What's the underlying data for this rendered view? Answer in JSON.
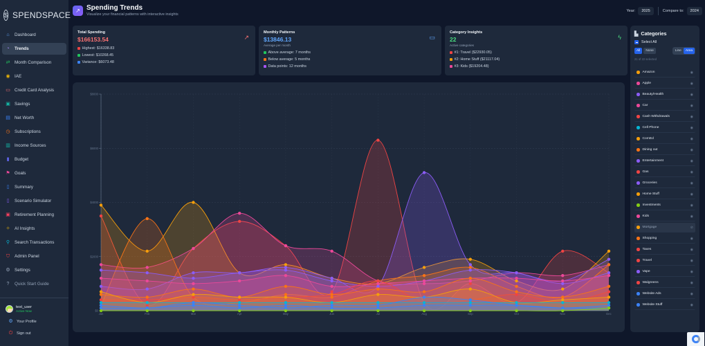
{
  "brand": {
    "name": "SPENDSPACE",
    "icon": "stopwatch-dollar-icon"
  },
  "sidebar": {
    "items": [
      {
        "label": "Dashboard",
        "icon": "home-icon",
        "glyph": "⌂",
        "color": "#60a5fa"
      },
      {
        "label": "Trends",
        "icon": "trend-icon",
        "glyph": "◔",
        "color": "#a78bfa",
        "active": true
      },
      {
        "label": "Month Comparison",
        "icon": "compare-arrows-icon",
        "glyph": "⇄",
        "color": "#22c55e"
      },
      {
        "label": "IAE",
        "icon": "coin-icon",
        "glyph": "◉",
        "color": "#eab308"
      },
      {
        "label": "Credit Card Analysis",
        "icon": "credit-card-icon",
        "glyph": "▭",
        "color": "#f87171"
      },
      {
        "label": "Savings",
        "icon": "savings-icon",
        "glyph": "▣",
        "color": "#14b8a6"
      },
      {
        "label": "Net Worth",
        "icon": "net-worth-icon",
        "glyph": "▤",
        "color": "#3b82f6"
      },
      {
        "label": "Subscriptions",
        "icon": "clock-icon",
        "glyph": "◷",
        "color": "#f97316"
      },
      {
        "label": "Income Sources",
        "icon": "income-icon",
        "glyph": "▥",
        "color": "#14b8a6"
      },
      {
        "label": "Budget",
        "icon": "bar-chart-icon",
        "glyph": "▮",
        "color": "#6366f1"
      },
      {
        "label": "Goals",
        "icon": "flag-icon",
        "glyph": "⚑",
        "color": "#ec4899"
      },
      {
        "label": "Summary",
        "icon": "document-icon",
        "glyph": "▯",
        "color": "#3b82f6"
      },
      {
        "label": "Scenario Simulator",
        "icon": "simulator-icon",
        "glyph": "▯",
        "color": "#8b5cf6"
      },
      {
        "label": "Retirement Planning",
        "icon": "retirement-icon",
        "glyph": "▣",
        "color": "#f43f5e"
      },
      {
        "label": "AI Insights",
        "icon": "sparkle-icon",
        "glyph": "✧",
        "color": "#eab308"
      },
      {
        "label": "Search Transactions",
        "icon": "search-icon",
        "glyph": "⚲",
        "color": "#06b6d4"
      },
      {
        "label": "Admin Panel",
        "icon": "shield-icon",
        "glyph": "⛉",
        "color": "#ef4444"
      },
      {
        "label": "Settings",
        "icon": "gear-icon",
        "glyph": "⚙",
        "color": "#94a3b8"
      },
      {
        "label": "Quick Start Guide",
        "icon": "help-icon",
        "glyph": "?",
        "color": "#94a3b8",
        "muted": true
      }
    ],
    "user": {
      "name": "test_user",
      "status": "Active Now"
    },
    "profile_label": "Your Profile",
    "signout_label": "Sign out"
  },
  "header": {
    "title": "Spending Trends",
    "subtitle": "Visualize your financial patterns with interactive insights",
    "year_label": "Year:",
    "year_value": "2025",
    "compare_label": "Compare to:",
    "compare_value": "2024"
  },
  "cards": {
    "total": {
      "title": "Total Spending",
      "value": "$166153.54",
      "value_color": "#f87171",
      "icon": "trend-up-icon",
      "items": [
        {
          "text": "Highest: $16338.83",
          "color": "#ef4444"
        },
        {
          "text": "Lowest: $10268.45",
          "color": "#22c55e"
        },
        {
          "text": "Variance: $6073.48",
          "color": "#3b82f6"
        }
      ]
    },
    "monthly": {
      "title": "Monthly Patterns",
      "value": "$13846.13",
      "value_color": "#60a5fa",
      "sub": "Average per month",
      "icon": "calendar-icon",
      "items": [
        {
          "text": "Above average: 7 months",
          "color": "#22c55e"
        },
        {
          "text": "Below average: 5 months",
          "color": "#f97316"
        },
        {
          "text": "Data points: 12 months",
          "color": "#a855f7"
        }
      ]
    },
    "category": {
      "title": "Category Insights",
      "value": "22",
      "value_color": "#4ade80",
      "sub": "Active categories",
      "icon": "lightning-icon",
      "items": [
        {
          "text": "#1: Travel ($22930.05)",
          "color": "#ef4444"
        },
        {
          "text": "#2: Home Stuff ($21117.04)",
          "color": "#f59e0b"
        },
        {
          "text": "#3: Kids ($19204.48)",
          "color": "#ec4899"
        }
      ]
    }
  },
  "categories_panel": {
    "title": "Categories",
    "select_all_label": "Select All",
    "all_label": "All",
    "none_label": "None",
    "line_label": "Line",
    "area_label": "Area",
    "selected_text": "21 of 22 selected",
    "items": [
      {
        "name": "Amazon",
        "color": "#f59e0b"
      },
      {
        "name": "Apple",
        "color": "#ec4899"
      },
      {
        "name": "Beauty/Health",
        "color": "#8b5cf6"
      },
      {
        "name": "Car",
        "color": "#ec4899"
      },
      {
        "name": "Cash Withdrawals",
        "color": "#ef4444"
      },
      {
        "name": "Cell Phone",
        "color": "#06b6d4"
      },
      {
        "name": "ComEd",
        "color": "#f59e0b"
      },
      {
        "name": "Dining out",
        "color": "#f97316"
      },
      {
        "name": "Entertainment",
        "color": "#8b5cf6"
      },
      {
        "name": "Gas",
        "color": "#ef4444"
      },
      {
        "name": "Groceries",
        "color": "#8b5cf6"
      },
      {
        "name": "Home Stuff",
        "color": "#f59e0b"
      },
      {
        "name": "Investments",
        "color": "#84cc16"
      },
      {
        "name": "Kids",
        "color": "#ec4899"
      },
      {
        "name": "Mortgage",
        "color": "#f59e0b",
        "hidden": true
      },
      {
        "name": "Shopping",
        "color": "#f97316"
      },
      {
        "name": "Taxes",
        "color": "#ef4444"
      },
      {
        "name": "Travel",
        "color": "#ef4444"
      },
      {
        "name": "Vape",
        "color": "#8b5cf6"
      },
      {
        "name": "Walgreens",
        "color": "#ef4444"
      },
      {
        "name": "Website Ads",
        "color": "#3b82f6"
      },
      {
        "name": "Website Stuff",
        "color": "#3b82f6"
      }
    ]
  },
  "chart_data": {
    "type": "area",
    "title": "",
    "xlabel": "",
    "ylabel": "",
    "categories": [
      "Jan",
      "Feb",
      "Mar",
      "Apr",
      "May",
      "Jun",
      "Jul",
      "Aug",
      "Sep",
      "Oct",
      "Nov",
      "Dec"
    ],
    "yticks": [
      "$0",
      "$2000",
      "$4000",
      "$6000",
      "$8000"
    ],
    "ylim": [
      0,
      8000
    ],
    "grid": true,
    "series": [
      {
        "name": "Travel",
        "color": "#ef4444",
        "values": [
          3500,
          200,
          2300,
          3300,
          2400,
          700,
          6300,
          300,
          1000,
          300,
          2200,
          1400
        ]
      },
      {
        "name": "Home Stuff",
        "color": "#f59e0b",
        "values": [
          3900,
          2200,
          4000,
          1400,
          1700,
          1200,
          1000,
          1600,
          1900,
          1100,
          800,
          2200
        ]
      },
      {
        "name": "Kids",
        "color": "#ec4899",
        "values": [
          1700,
          1600,
          2300,
          3600,
          2400,
          2200,
          1100,
          1000,
          1100,
          1400,
          1300,
          1700
        ]
      },
      {
        "name": "Entertainment",
        "color": "#8b5cf6",
        "values": [
          900,
          800,
          1400,
          1400,
          1600,
          1200,
          900,
          5100,
          1700,
          1400,
          1100,
          1900
        ]
      },
      {
        "name": "Dining out",
        "color": "#f97316",
        "values": [
          200,
          3400,
          500,
          300,
          600,
          500,
          1100,
          1300,
          1600,
          900,
          500,
          1700
        ]
      },
      {
        "name": "Groceries",
        "color": "#8b5cf6",
        "values": [
          1500,
          1400,
          1200,
          1400,
          1500,
          1100,
          900,
          1100,
          1500,
          1400,
          1000,
          1400
        ]
      },
      {
        "name": "Car",
        "color": "#ec4899",
        "values": [
          1200,
          1100,
          1000,
          1100,
          1300,
          900,
          1000,
          1100,
          1200,
          1200,
          1100,
          1300
        ]
      },
      {
        "name": "Gas",
        "color": "#ef4444",
        "values": [
          400,
          400,
          500,
          400,
          500,
          600,
          1100,
          300,
          400,
          600,
          300,
          700
        ]
      },
      {
        "name": "Shopping",
        "color": "#f97316",
        "values": [
          600,
          500,
          800,
          500,
          900,
          600,
          800,
          700,
          1200,
          700,
          500,
          900
        ]
      },
      {
        "name": "Amazon",
        "color": "#f59e0b",
        "values": [
          700,
          300,
          600,
          500,
          500,
          300,
          600,
          500,
          800,
          300,
          400,
          500
        ]
      },
      {
        "name": "Cell Phone",
        "color": "#06b6d4",
        "values": [
          300,
          300,
          300,
          300,
          300,
          300,
          300,
          300,
          300,
          300,
          300,
          300
        ]
      },
      {
        "name": "Website Stuff",
        "color": "#3b82f6",
        "values": [
          200,
          100,
          300,
          200,
          100,
          200,
          200,
          500,
          400,
          200,
          100,
          200
        ]
      },
      {
        "name": "Website Ads",
        "color": "#3b82f6",
        "values": [
          100,
          100,
          200,
          100,
          200,
          100,
          100,
          200,
          200,
          200,
          100,
          100
        ]
      },
      {
        "name": "Investments",
        "color": "#84cc16",
        "values": [
          0,
          0,
          0,
          0,
          0,
          0,
          0,
          0,
          0,
          0,
          0,
          100
        ]
      }
    ]
  }
}
